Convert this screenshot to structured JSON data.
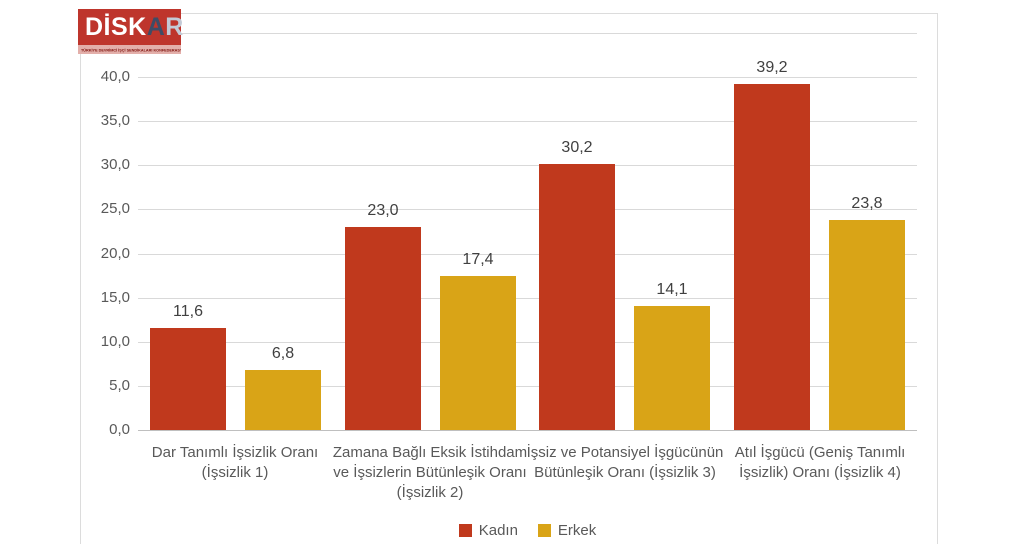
{
  "logo": {
    "disk": "DİSK",
    "a": "A",
    "r": "R",
    "subtitle": "TÜRKİYE DEVRİMCİ İŞÇİ SENDİKALARI KONFEDERASYONU ARAŞTIRMA MERKEZİ",
    "bg_color": "#be352c",
    "strip_color": "#e3afaa"
  },
  "chart_data": {
    "type": "bar",
    "title": "",
    "categories": [
      {
        "label": "Dar Tanımlı İşsizlik Oranı (İşsizlik 1)",
        "lines": [
          "Dar Tanımlı İşsizlik Oranı",
          "(İşsizlik 1)"
        ]
      },
      {
        "label": "Zamana Bağlı Eksik İstihdam ve İşsizlerin Bütünleşik Oranı (İşsizlik 2)",
        "lines": [
          "Zamana Bağlı Eksik İstihdam",
          "ve İşsizlerin Bütünleşik Oranı",
          "(İşsizlik 2)"
        ]
      },
      {
        "label": "İşsiz ve Potansiyel İşgücünün Bütünleşik Oranı (İşsizlik 3)",
        "lines": [
          "İşsiz ve Potansiyel İşgücünün",
          "Bütünleşik Oranı (İşsizlik 3)"
        ]
      },
      {
        "label": "Atıl İşgücü (Geniş Tanımlı İşsizlik) Oranı (İşsizlik 4)",
        "lines": [
          "Atıl İşgücü (Geniş Tanımlı",
          "İşsizlik) Oranı (İşsizlik 4)"
        ]
      }
    ],
    "series": [
      {
        "name": "Kadın",
        "color": "#c0391d",
        "values": [
          11.6,
          23.0,
          30.2,
          39.2
        ],
        "labels": [
          "11,6",
          "23,0",
          "30,2",
          "39,2"
        ]
      },
      {
        "name": "Erkek",
        "color": "#d9a417",
        "values": [
          6.8,
          17.4,
          14.1,
          23.8
        ],
        "labels": [
          "6,8",
          "17,4",
          "14,1",
          "23,8"
        ]
      }
    ],
    "y_axis": {
      "min": 0,
      "max": 45,
      "tick_step": 5,
      "tick_labels": [
        "0,0",
        "5,0",
        "10,0",
        "15,0",
        "20,0",
        "25,0",
        "30,0",
        "35,0",
        "40,0"
      ]
    },
    "grid": true,
    "legend_position": "bottom"
  }
}
